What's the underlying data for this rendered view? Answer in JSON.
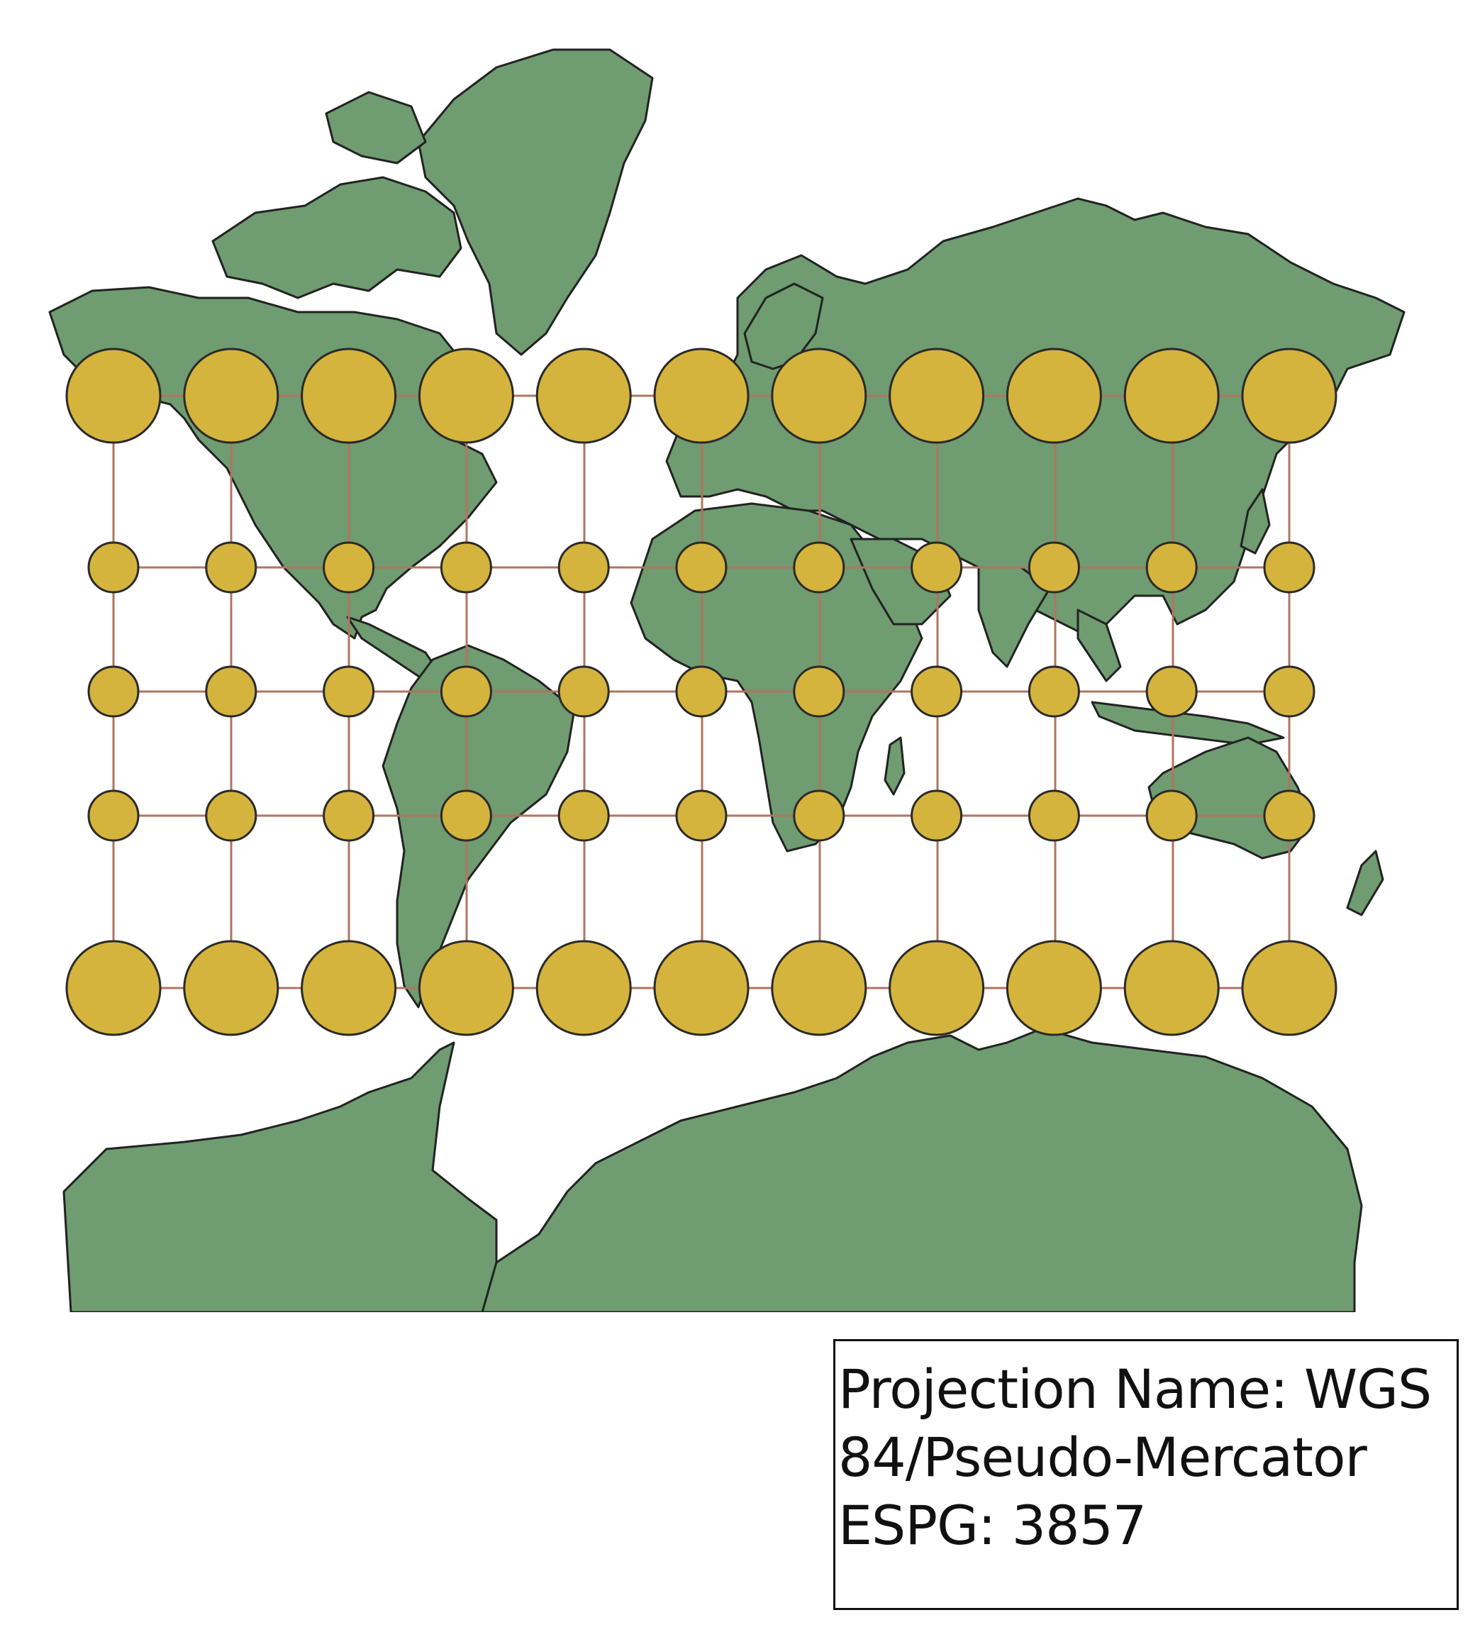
{
  "map": {
    "land_color": "#6f9c70",
    "indicatrix_color": "#d4b43c",
    "graticule_color": "#b07560",
    "indicatrix_rows": [
      {
        "latitude": 60,
        "size": "large"
      },
      {
        "latitude": 30,
        "size": "small"
      },
      {
        "latitude": 0,
        "size": "small"
      },
      {
        "latitude": -30,
        "size": "small"
      },
      {
        "latitude": -60,
        "size": "large"
      }
    ],
    "indicatrix_longitudes": [
      -150,
      -120,
      -90,
      -60,
      -30,
      0,
      30,
      60,
      90,
      120,
      150
    ]
  },
  "legend": {
    "line1": "Projection Name: WGS",
    "line2": "84/Pseudo-Mercator",
    "line3": "ESPG: 3857"
  }
}
